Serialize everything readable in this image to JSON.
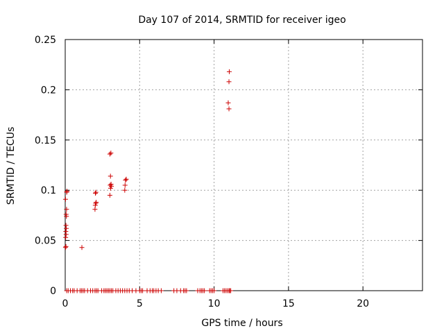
{
  "chart_data": {
    "type": "scatter",
    "title": "Day 107 of 2014, SRMTID for receiver igeo",
    "xlabel": "GPS time / hours",
    "ylabel": "SRMTID / TECUs",
    "xlim": [
      0,
      24
    ],
    "ylim": [
      0,
      0.25
    ],
    "xticks": [
      0,
      5,
      10,
      15,
      20
    ],
    "xtick_labels": [
      "0",
      "5",
      "10",
      "15",
      "20"
    ],
    "yticks": [
      0,
      0.05,
      0.1,
      0.15,
      0.2,
      0.25
    ],
    "ytick_labels": [
      "0",
      "0.05",
      "0.1",
      "0.15",
      "0.2",
      "0.25"
    ],
    "grid": true,
    "marker": "+",
    "color": "#cc0000",
    "series": [
      {
        "name": "SRMTID",
        "points": [
          [
            0.02,
            0.043
          ],
          [
            0.05,
            0.044
          ],
          [
            0.03,
            0.053
          ],
          [
            0.06,
            0.056
          ],
          [
            0.04,
            0.059
          ],
          [
            0.07,
            0.062
          ],
          [
            0.05,
            0.065
          ],
          [
            0.08,
            0.074
          ],
          [
            0.06,
            0.076
          ],
          [
            0.09,
            0.081
          ],
          [
            0.02,
            0.091
          ],
          [
            0.1,
            0.098
          ],
          [
            0.12,
            0.099
          ],
          [
            1.12,
            0.043
          ],
          [
            2.0,
            0.081
          ],
          [
            2.02,
            0.085
          ],
          [
            2.05,
            0.087
          ],
          [
            2.08,
            0.088
          ],
          [
            2.03,
            0.097
          ],
          [
            2.06,
            0.098
          ],
          [
            3.0,
            0.095
          ],
          [
            3.05,
            0.102
          ],
          [
            3.1,
            0.104
          ],
          [
            3.02,
            0.105
          ],
          [
            3.08,
            0.106
          ],
          [
            3.04,
            0.114
          ],
          [
            3.0,
            0.136
          ],
          [
            3.07,
            0.137
          ],
          [
            4.0,
            0.1
          ],
          [
            4.02,
            0.105
          ],
          [
            4.05,
            0.11
          ],
          [
            4.1,
            0.111
          ],
          [
            11.0,
            0.181
          ],
          [
            10.95,
            0.187
          ],
          [
            11.0,
            0.208
          ],
          [
            11.02,
            0.218
          ],
          [
            0.1,
            0
          ],
          [
            0.2,
            0
          ],
          [
            0.35,
            0
          ],
          [
            0.5,
            0
          ],
          [
            0.6,
            0
          ],
          [
            0.8,
            0
          ],
          [
            1.0,
            0
          ],
          [
            1.1,
            0
          ],
          [
            1.2,
            0
          ],
          [
            1.3,
            0
          ],
          [
            1.5,
            0
          ],
          [
            1.7,
            0
          ],
          [
            1.85,
            0
          ],
          [
            2.0,
            0
          ],
          [
            2.1,
            0
          ],
          [
            2.2,
            0
          ],
          [
            2.45,
            0
          ],
          [
            2.6,
            0
          ],
          [
            2.7,
            0
          ],
          [
            2.8,
            0
          ],
          [
            2.9,
            0
          ],
          [
            3.0,
            0
          ],
          [
            3.1,
            0
          ],
          [
            3.2,
            0
          ],
          [
            3.4,
            0
          ],
          [
            3.55,
            0
          ],
          [
            3.7,
            0
          ],
          [
            3.85,
            0
          ],
          [
            4.0,
            0
          ],
          [
            4.15,
            0
          ],
          [
            4.3,
            0
          ],
          [
            4.5,
            0
          ],
          [
            4.75,
            0
          ],
          [
            5.0,
            0
          ],
          [
            5.1,
            0
          ],
          [
            5.2,
            0
          ],
          [
            5.5,
            0
          ],
          [
            5.7,
            0
          ],
          [
            5.85,
            0
          ],
          [
            5.95,
            0
          ],
          [
            6.1,
            0
          ],
          [
            6.25,
            0
          ],
          [
            6.45,
            0
          ],
          [
            7.3,
            0
          ],
          [
            7.5,
            0
          ],
          [
            7.75,
            0
          ],
          [
            7.95,
            0
          ],
          [
            8.05,
            0
          ],
          [
            8.15,
            0
          ],
          [
            8.9,
            0
          ],
          [
            9.05,
            0
          ],
          [
            9.15,
            0
          ],
          [
            9.25,
            0
          ],
          [
            9.35,
            0
          ],
          [
            9.7,
            0
          ],
          [
            9.8,
            0
          ],
          [
            9.9,
            0
          ],
          [
            10.0,
            0
          ],
          [
            10.6,
            0
          ],
          [
            10.7,
            0
          ],
          [
            10.8,
            0
          ],
          [
            10.9,
            0
          ],
          [
            11.0,
            0
          ],
          [
            11.05,
            0
          ],
          [
            11.12,
            0
          ]
        ]
      }
    ]
  }
}
